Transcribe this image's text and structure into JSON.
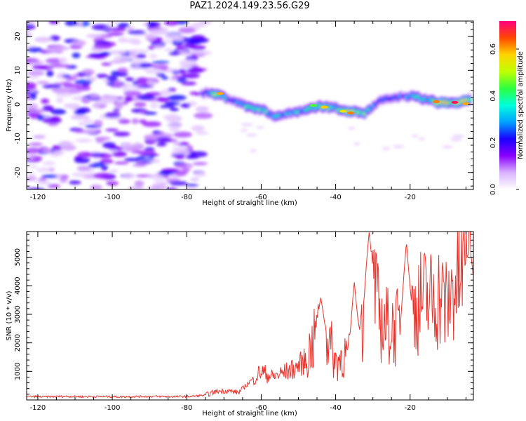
{
  "figure_title": "PAZ1.2024.149.23.56.G29",
  "colors": {
    "snr_line": "#e8332c",
    "colormap": [
      "#ffffff",
      "#d9b3ff",
      "#8a00ff",
      "#1900ff",
      "#00a2ff",
      "#00ffdb",
      "#2dff3f",
      "#bfff00",
      "#ffd400",
      "#ff4800",
      "#ff007f"
    ]
  },
  "chart_data": [
    {
      "type": "heatmap",
      "xlabel": "Height of straight line (km)",
      "ylabel": "Frequency (Hz)",
      "xlim": [
        -123,
        -3
      ],
      "ylim": [
        -25,
        24.5
      ],
      "x_ticks": [
        -120,
        -100,
        -80,
        -60,
        -40,
        -20
      ],
      "x_tick_labels": [
        "-120",
        "-100",
        "-80",
        "-60",
        "-40",
        "-20"
      ],
      "y_ticks": [
        -20,
        -10,
        0,
        10,
        20
      ],
      "y_tick_labels": [
        "-20",
        "-10",
        "0",
        "10",
        "20"
      ],
      "colorbar": {
        "label": "Normalized spectral amplitude",
        "range": [
          0,
          0.72
        ],
        "ticks": [
          0.0,
          0.2,
          0.4,
          0.6
        ],
        "tick_labels": [
          "0.0",
          "0.2",
          "0.4",
          "0.6"
        ]
      },
      "noise_region_x": [
        -123,
        -75
      ],
      "signal_ridge": {
        "x": [
          -76,
          -72,
          -68,
          -64,
          -60,
          -56,
          -52,
          -48,
          -44,
          -40,
          -36,
          -32,
          -28,
          -24,
          -20,
          -16,
          -12,
          -8,
          -4
        ],
        "frequency": [
          3.5,
          3.0,
          1.5,
          -0.5,
          -1.5,
          -3.5,
          -2.5,
          -1.5,
          -0.5,
          -1.0,
          -2.0,
          -2.5,
          1.0,
          2.0,
          2.5,
          1.5,
          0.5,
          0.5,
          1.0
        ],
        "amplitude": [
          0.2,
          0.62,
          0.3,
          0.45,
          0.5,
          0.4,
          0.35,
          0.45,
          0.55,
          0.45,
          0.6,
          0.5,
          0.3,
          0.25,
          0.35,
          0.45,
          0.55,
          0.7,
          0.65
        ]
      }
    },
    {
      "type": "line",
      "xlabel": "Height of straight line (km)",
      "ylabel": "SNR (10 * v/v)",
      "xlim": [
        -123,
        -3
      ],
      "ylim": [
        0,
        5900
      ],
      "x_ticks": [
        -120,
        -100,
        -80,
        -60,
        -40,
        -20
      ],
      "x_tick_labels": [
        "-120",
        "-100",
        "-80",
        "-60",
        "-40",
        "-20"
      ],
      "y_ticks": [
        1000,
        2000,
        3000,
        4000,
        5000
      ],
      "y_tick_labels": [
        "1000",
        "2000",
        "3000",
        "4000",
        "5000"
      ],
      "series": [
        {
          "x": [
            -123,
            -118,
            -113,
            -108,
            -103,
            -98,
            -93,
            -88,
            -83,
            -78,
            -75,
            -72,
            -69,
            -66,
            -63,
            -60,
            -57,
            -54,
            -51,
            -48,
            -45,
            -42,
            -40,
            -38,
            -36,
            -34,
            -32,
            -30,
            -28,
            -26,
            -24,
            -22,
            -20,
            -18,
            -16,
            -14,
            -12,
            -10,
            -8,
            -6,
            -4,
            -3
          ],
          "y": [
            120,
            110,
            125,
            115,
            120,
            110,
            120,
            125,
            115,
            130,
            170,
            300,
            320,
            260,
            650,
            1000,
            800,
            950,
            1100,
            1400,
            2300,
            2200,
            1300,
            1600,
            1500,
            2000,
            3300,
            3900,
            2800,
            2600,
            2500,
            2700,
            3000,
            3400,
            3550,
            3500,
            3700,
            3200,
            4100,
            4400,
            4900,
            3600
          ],
          "peaks": [
            {
              "x": -31,
              "y": 5900
            },
            {
              "x": -21,
              "y": 5550
            },
            {
              "x": -44,
              "y": 3600
            },
            {
              "x": -35,
              "y": 4150
            },
            {
              "x": -4,
              "y": 5200
            }
          ]
        }
      ]
    }
  ]
}
